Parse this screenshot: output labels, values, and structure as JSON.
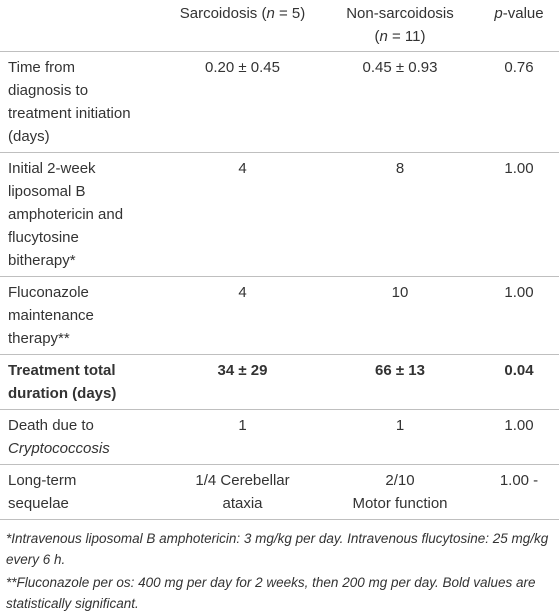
{
  "table": {
    "header": [
      [
        [
          "Sarcoidosis (",
          {
            "text": "n",
            "italic": true
          },
          " = 5)"
        ]
      ],
      [
        "Non-sarcoidosis",
        [
          "(",
          {
            "text": "n",
            "italic": true
          },
          " = 11)"
        ]
      ],
      [
        [
          {
            "text": "p",
            "italic": true
          },
          "-value"
        ]
      ]
    ],
    "rows": [
      {
        "bold": false,
        "cells": [
          [
            "Time from",
            "diagnosis to",
            "treatment initiation",
            "(days)"
          ],
          [
            "0.20 ± 0.45"
          ],
          [
            "0.45 ± 0.93"
          ],
          [
            "0.76"
          ]
        ]
      },
      {
        "bold": false,
        "cells": [
          [
            "Initial 2-week",
            "liposomal B",
            "amphotericin and",
            "flucytosine",
            "bitherapy*"
          ],
          [
            "4"
          ],
          [
            "8"
          ],
          [
            "1.00"
          ]
        ]
      },
      {
        "bold": false,
        "cells": [
          [
            "Fluconazole",
            "maintenance",
            "therapy**"
          ],
          [
            "4"
          ],
          [
            "10"
          ],
          [
            "1.00"
          ]
        ]
      },
      {
        "bold": true,
        "cells": [
          [
            "Treatment total",
            "duration (days)"
          ],
          [
            "34 ± 29"
          ],
          [
            "66 ± 13"
          ],
          [
            "0.04"
          ]
        ]
      },
      {
        "bold": false,
        "cells": [
          [
            "Death due to",
            [
              {
                "text": "Cryptococcosis",
                "italic": true
              }
            ]
          ],
          [
            "1"
          ],
          [
            "1"
          ],
          [
            "1.00"
          ]
        ]
      },
      {
        "bold": false,
        "cells": [
          [
            "Long-term",
            "sequelae"
          ],
          [
            "1/4 Cerebellar",
            "ataxia"
          ],
          [
            "2/10",
            "Motor function"
          ],
          [
            "1.00 -"
          ]
        ]
      }
    ],
    "footnotes": [
      "*Intravenous liposomal B amphotericin: 3 mg/kg per day. Intravenous flucytosine: 25 mg/kg every 6 h.",
      "**Fluconazole per os: 400 mg per day for 2 weeks, then 200 mg per day. Bold values are statistically significant."
    ]
  }
}
